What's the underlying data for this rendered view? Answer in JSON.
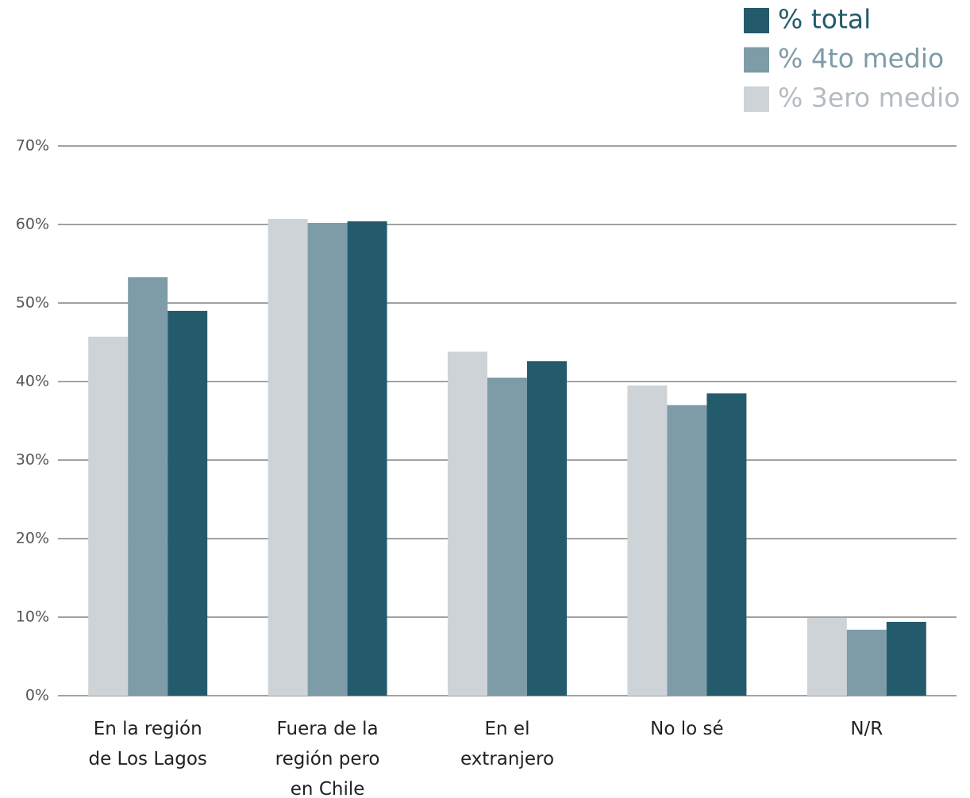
{
  "chart_data": {
    "type": "bar",
    "categories": [
      "En la región de Los Lagos",
      "Fuera de la región pero en Chile",
      "En el extranjero",
      "No lo sé",
      "N/R"
    ],
    "series": [
      {
        "name": "% 3ero medio",
        "color": "#cdd3d7",
        "values": [
          45.7,
          60.7,
          43.8,
          39.5,
          9.9
        ]
      },
      {
        "name": "% 4to medio",
        "color": "#7d9ca7",
        "values": [
          53.3,
          60.2,
          40.5,
          37.0,
          8.4
        ]
      },
      {
        "name": "% total",
        "color": "#245b6c",
        "values": [
          49.0,
          60.4,
          42.6,
          38.5,
          9.4
        ]
      }
    ],
    "ylim": [
      0,
      70
    ],
    "yticks": [
      {
        "value": 0,
        "label": "0%"
      },
      {
        "value": 10,
        "label": "10%"
      },
      {
        "value": 20,
        "label": "20%"
      },
      {
        "value": 30,
        "label": "30%"
      },
      {
        "value": 40,
        "label": "40%"
      },
      {
        "value": 50,
        "label": "50%"
      },
      {
        "value": 60,
        "label": "60%"
      },
      {
        "value": 70,
        "label": "70%"
      }
    ],
    "grid": true,
    "legend": "top-right"
  }
}
